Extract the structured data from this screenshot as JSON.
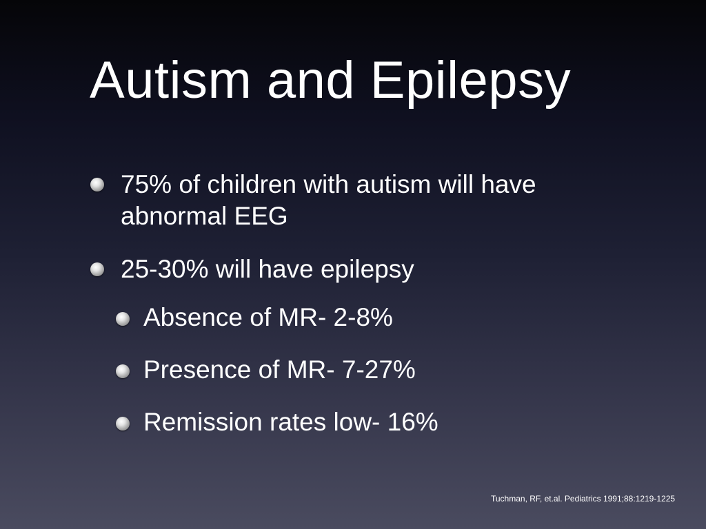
{
  "slide": {
    "title": "Autism and Epilepsy",
    "bullets": [
      {
        "lines": [
          "75% of children with autism will have",
          "abnormal EEG"
        ]
      },
      {
        "lines": [
          "25-30% will have epilepsy"
        ],
        "sub_bullets": [
          "Absence of MR- 2-8%",
          "Presence of MR- 7-27%",
          "Remission rates low- 16%"
        ]
      }
    ],
    "citation": "Tuchman, RF, et.al. Pediatrics 1991;88:1219-1225",
    "bullet_icon": "sphere-bullet-icon"
  }
}
